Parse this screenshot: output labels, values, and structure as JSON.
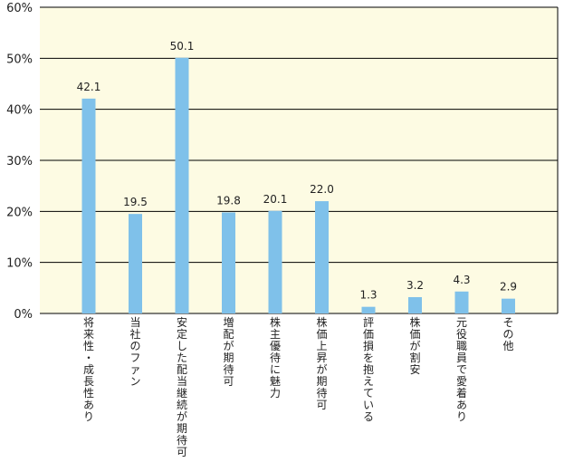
{
  "colors": {
    "plot_background": "#FDFBE3",
    "bar": "#7FC1EA",
    "gridline": "#000000",
    "text": "#222222"
  },
  "chart_data": {
    "type": "bar",
    "title": "",
    "xlabel": "",
    "ylabel": "",
    "ylim": [
      0,
      60
    ],
    "y_ticks": [
      "0%",
      "10%",
      "20%",
      "30%",
      "40%",
      "50%",
      "60%"
    ],
    "grid": true,
    "categories": [
      "将来性・成長性あり",
      "当社のファン",
      "安定した配当継続が期待可",
      "増配が期待可",
      "株主優待に魅力",
      "株価上昇が期待可",
      "評価損を抱えている",
      "株価が割安",
      "元役職員で愛着あり",
      "その他"
    ],
    "values": [
      42.1,
      19.5,
      50.1,
      19.8,
      20.1,
      22.0,
      1.3,
      3.2,
      4.3,
      2.9
    ],
    "data_labels": [
      "42.1",
      "19.5",
      "50.1",
      "19.8",
      "20.1",
      "22.0",
      "1.3",
      "3.2",
      "4.3",
      "2.9"
    ]
  }
}
